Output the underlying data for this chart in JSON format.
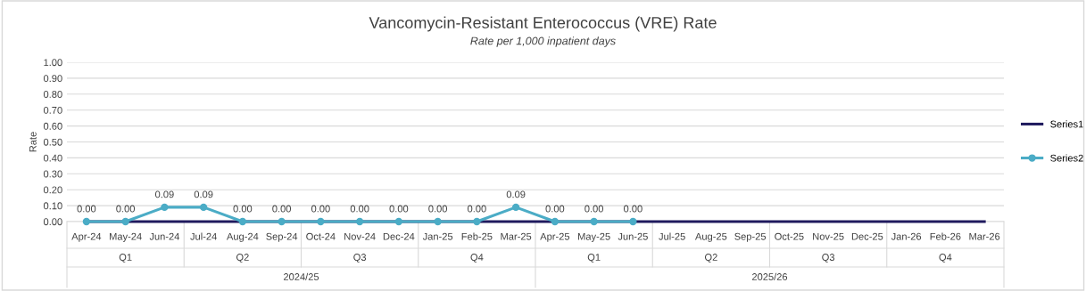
{
  "chart_data": {
    "type": "line",
    "title": "Vancomycin-Resistant Enterococcus (VRE) Rate",
    "subtitle": "Rate per 1,000 inpatient days",
    "ylabel": "Rate",
    "categories": [
      "Apr-24",
      "May-24",
      "Jun-24",
      "Jul-24",
      "Aug-24",
      "Sep-24",
      "Oct-24",
      "Nov-24",
      "Dec-24",
      "Jan-25",
      "Feb-25",
      "Mar-25",
      "Apr-25",
      "May-25",
      "Jun-25",
      "Jul-25",
      "Aug-25",
      "Sep-25",
      "Oct-25",
      "Nov-25",
      "Dec-25",
      "Jan-26",
      "Feb-26",
      "Mar-26"
    ],
    "annotations": [
      "Q1",
      "Q2",
      "Q3",
      "Q4",
      "Q1",
      "Q2",
      "Q3",
      "Q4",
      "2024/25",
      "2025/26"
    ],
    "series": [
      {
        "name": "Series1",
        "color": "#1f1a5e",
        "marker": "none",
        "values": [
          0,
          0,
          0,
          0,
          0,
          0,
          0,
          0,
          0,
          0,
          0,
          0,
          0,
          0,
          0,
          0,
          0,
          0,
          0,
          0,
          0,
          0,
          0,
          0
        ]
      },
      {
        "name": "Series2",
        "color": "#4bacc6",
        "marker": "circle",
        "values": [
          0,
          0,
          0.09,
          0.09,
          0,
          0,
          0,
          0,
          0,
          0,
          0,
          0.09,
          0,
          0,
          0,
          null,
          null,
          null,
          null,
          null,
          null,
          null,
          null,
          null
        ],
        "value_labels": [
          "0.00",
          "0.00",
          "0.09",
          "0.09",
          "0.00",
          "0.00",
          "0.00",
          "0.00",
          "0.00",
          "0.00",
          "0.00",
          "0.09",
          "0.00",
          "0.00",
          "0.00",
          null,
          null,
          null,
          null,
          null,
          null,
          null,
          null,
          null
        ]
      }
    ],
    "ylim": [
      0,
      1
    ],
    "yticks": [
      {
        "value": 0,
        "label": "0.00"
      },
      {
        "value": 0.1,
        "label": "0.10"
      },
      {
        "value": 0.2,
        "label": "0.20"
      },
      {
        "value": 0.3,
        "label": "0.30"
      },
      {
        "value": 0.4,
        "label": "0.40"
      },
      {
        "value": 0.5,
        "label": "0.50"
      },
      {
        "value": 0.6,
        "label": "0.60"
      },
      {
        "value": 0.7,
        "label": "0.70"
      },
      {
        "value": 0.8,
        "label": "0.80"
      },
      {
        "value": 0.9,
        "label": "0.90"
      },
      {
        "value": 1,
        "label": "1.00"
      }
    ],
    "grid": "y",
    "legend": "right"
  }
}
